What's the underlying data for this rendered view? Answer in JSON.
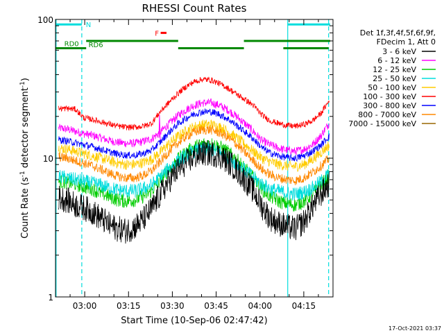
{
  "chart_data": {
    "type": "line",
    "title": "RHESSI Count Rates",
    "xlabel": "Start Time (10-Sep-06 02:47:42)",
    "ylabel": "Count Rate (s",
    "ylabel_sup": "-1",
    "ylabel_rest": " detector segment",
    "ylabel_sup2": "-1",
    "ylabel_end": ")",
    "yscale": "log",
    "ylim": [
      1,
      100
    ],
    "xlim_min": [
      170,
      265
    ],
    "xticks": [
      {
        "label": "03:00",
        "min": 180
      },
      {
        "label": "03:15",
        "min": 195
      },
      {
        "label": "03:30",
        "min": 210
      },
      {
        "label": "03:45",
        "min": 225
      },
      {
        "label": "04:00",
        "min": 240
      },
      {
        "label": "04:15",
        "min": 255
      }
    ],
    "yticks": [
      {
        "label": "1",
        "value": 1
      },
      {
        "label": "10",
        "value": 10
      },
      {
        "label": "100",
        "value": 100
      }
    ],
    "legend_header": [
      "Det 1f,3f,4f,5f,6f,9f,",
      "FDecim 1, Att 0"
    ],
    "legend_position": "right",
    "series": [
      {
        "name": "3 - 6 keV",
        "color": "#000000",
        "values": [
          5.2,
          5.0,
          4.6,
          4.4,
          4.1,
          3.7,
          3.3,
          3.1,
          3.0,
          3.2,
          3.6,
          4.3,
          5.4,
          6.8,
          8.1,
          9.2,
          10.2,
          10.8,
          10.9,
          10.4,
          9.5,
          8.3,
          7.0,
          5.8,
          4.5,
          3.7,
          3.4,
          3.2,
          3.1,
          3.5,
          4.5,
          5.5,
          6.6
        ]
      },
      {
        "name": "6 - 12 keV",
        "color": "#ff00ff",
        "values": [
          16.5,
          16.2,
          15.6,
          15.0,
          14.6,
          14.0,
          13.4,
          13.0,
          12.8,
          12.8,
          13.2,
          13.8,
          15.3,
          17.5,
          20.0,
          22.2,
          24.0,
          25.0,
          25.1,
          24.0,
          22.3,
          20.0,
          17.8,
          15.6,
          13.4,
          12.5,
          11.8,
          11.4,
          11.2,
          11.6,
          12.5,
          14.5,
          18.0
        ]
      },
      {
        "name": "12 - 25 keV",
        "color": "#00cc00",
        "values": [
          6.8,
          6.7,
          6.5,
          6.2,
          6.0,
          5.6,
          5.3,
          5.0,
          4.9,
          5.0,
          5.3,
          5.8,
          6.9,
          8.2,
          9.6,
          10.9,
          12.0,
          12.6,
          12.7,
          12.1,
          11.1,
          9.8,
          8.4,
          7.2,
          6.0,
          5.3,
          4.9,
          4.7,
          4.6,
          4.9,
          5.5,
          6.4,
          7.5
        ]
      },
      {
        "name": "25 - 50 keV",
        "color": "#00dddd",
        "values": [
          7.4,
          7.2,
          7.0,
          6.8,
          6.6,
          6.4,
          6.1,
          5.9,
          5.8,
          5.8,
          6.0,
          6.4,
          7.3,
          8.4,
          9.5,
          10.4,
          11.2,
          11.6,
          11.5,
          11.0,
          10.2,
          9.2,
          8.2,
          7.3,
          6.5,
          6.0,
          5.8,
          5.6,
          5.5,
          5.7,
          6.1,
          6.8,
          7.8
        ]
      },
      {
        "name": "50 - 100 keV",
        "color": "#ffcc00",
        "values": [
          11.8,
          11.6,
          11.2,
          10.8,
          10.4,
          10.0,
          9.6,
          9.2,
          9.0,
          9.0,
          9.3,
          9.8,
          11.0,
          12.6,
          14.2,
          15.6,
          16.8,
          17.4,
          17.5,
          16.8,
          15.6,
          14.0,
          12.6,
          11.2,
          10.0,
          9.4,
          9.0,
          8.8,
          8.7,
          9.0,
          9.8,
          11.0,
          12.5
        ]
      },
      {
        "name": "100 - 300 keV",
        "color": "#ff0000",
        "values": [
          22.8,
          22.8,
          22.5,
          19.5,
          19.0,
          18.3,
          17.6,
          17.0,
          16.7,
          16.7,
          17.0,
          17.8,
          21.5,
          25.0,
          28.8,
          32.5,
          35.5,
          37.0,
          36.6,
          34.5,
          32.0,
          29.0,
          26.5,
          24.0,
          20.5,
          18.6,
          17.8,
          17.2,
          17.0,
          17.5,
          18.6,
          21.0,
          26.0
        ]
      },
      {
        "name": "300 - 800 keV",
        "color": "#0000ff",
        "values": [
          13.6,
          13.3,
          12.9,
          12.5,
          12.1,
          11.6,
          11.1,
          10.7,
          10.5,
          10.5,
          10.8,
          11.4,
          13.0,
          15.2,
          17.4,
          19.3,
          20.8,
          21.6,
          21.6,
          20.7,
          19.2,
          17.3,
          15.5,
          13.8,
          11.9,
          10.9,
          10.4,
          10.1,
          10.0,
          10.4,
          11.2,
          12.4,
          14.5
        ]
      },
      {
        "name": "800 - 7000 keV",
        "color": "#ff8800",
        "values": [
          10.2,
          10.0,
          9.6,
          9.2,
          8.8,
          8.3,
          7.8,
          7.4,
          7.2,
          7.2,
          7.5,
          8.1,
          9.4,
          11.0,
          12.7,
          14.2,
          15.4,
          16.0,
          16.0,
          15.3,
          14.1,
          12.6,
          11.0,
          9.6,
          8.3,
          7.6,
          7.2,
          7.0,
          6.9,
          7.2,
          7.9,
          8.8,
          10.0
        ]
      },
      {
        "name": "7000 - 15000 keV",
        "color": "#996600",
        "values": []
      }
    ],
    "x_samples_min": [
      171,
      173.9,
      176.8,
      179.7,
      182.6,
      185.5,
      188.4,
      191.3,
      194.2,
      197.1,
      200,
      202.9,
      205.8,
      208.7,
      211.6,
      214.5,
      217.4,
      220.3,
      223.2,
      226.1,
      229,
      231.9,
      234.8,
      237.7,
      240.6,
      243.5,
      246.4,
      249.3,
      252.2,
      255.1,
      258,
      260.9,
      263.8
    ],
    "annotations": [
      {
        "label": "N",
        "color": "#00dddd",
        "kind": "bar",
        "level": 92,
        "segments": [
          [
            170,
            179
          ]
        ]
      },
      {
        "label": "",
        "color": "#00dddd",
        "kind": "bar",
        "level": 92,
        "segments": [
          [
            249.5,
            264
          ]
        ]
      },
      {
        "label": "F",
        "color": "#ff0000",
        "kind": "bar",
        "level": 80,
        "segments": [
          [
            206,
            208
          ]
        ]
      },
      {
        "label": "RD0",
        "color": "#008800",
        "kind": "bar",
        "level": 62,
        "segments": [
          [
            170,
            180.5
          ],
          [
            212,
            234.5
          ],
          [
            248,
            263.5
          ]
        ]
      },
      {
        "label": "RD6",
        "color": "#008800",
        "kind": "bar",
        "level": 70,
        "segments": [
          [
            180.5,
            212
          ],
          [
            234.5,
            264
          ]
        ]
      }
    ],
    "vlines": [
      {
        "min": 170.2,
        "style": "solid",
        "color": "#00dddd"
      },
      {
        "min": 179,
        "style": "dashed",
        "color": "#00dddd"
      },
      {
        "min": 249.5,
        "style": "solid",
        "color": "#00dddd"
      },
      {
        "min": 263.5,
        "style": "dashed",
        "color": "#00dddd"
      }
    ],
    "footer_date": "17-Oct-2021 03:37"
  }
}
